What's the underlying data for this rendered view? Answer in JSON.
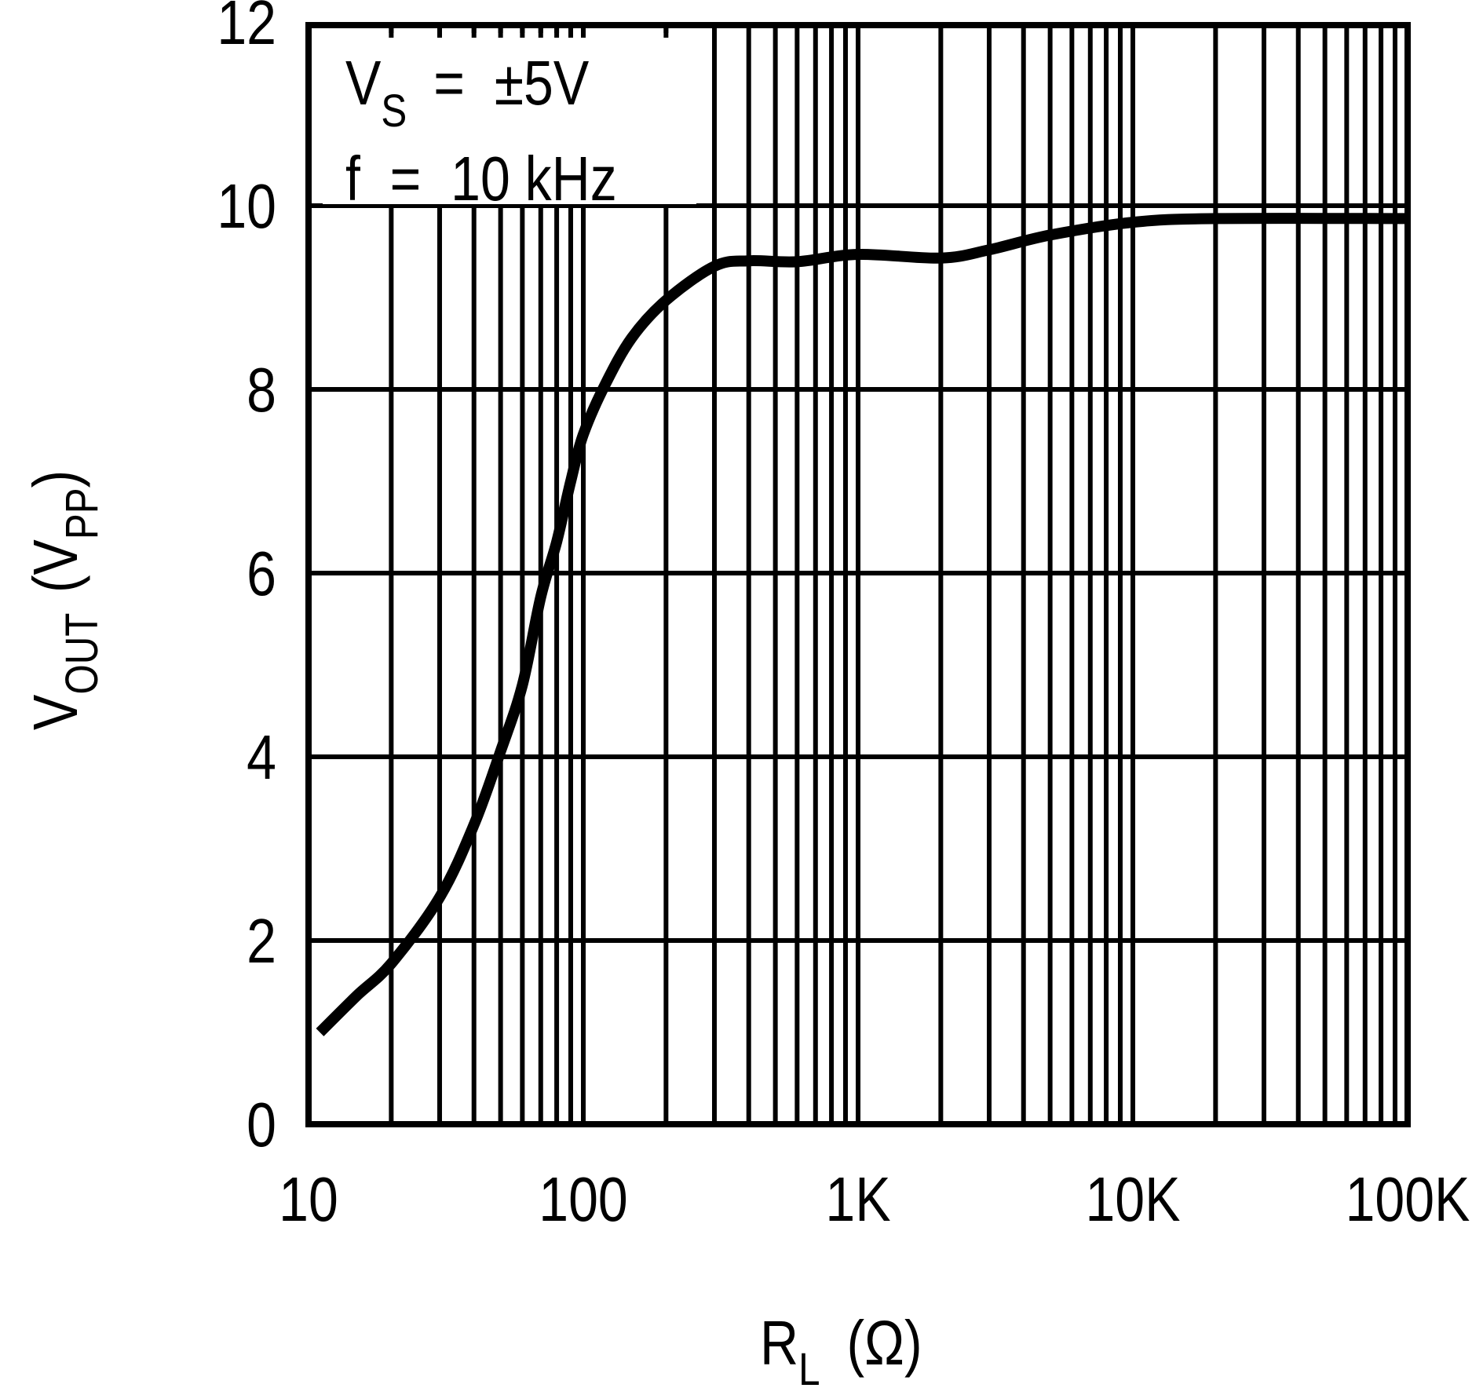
{
  "chart_data": {
    "type": "line",
    "title": "",
    "xlabel": "R_L (Ω)",
    "ylabel": "V_OUT (V_PP)",
    "x_scale": "log",
    "xlim": [
      10,
      100000
    ],
    "ylim": [
      0,
      12
    ],
    "x_ticks": [
      10,
      100,
      1000,
      10000,
      100000
    ],
    "x_tick_labels": [
      "10",
      "100",
      "1K",
      "10K",
      "100K"
    ],
    "y_ticks": [
      0,
      2,
      4,
      6,
      8,
      10,
      12
    ],
    "y_tick_labels": [
      "0",
      "2",
      "4",
      "6",
      "8",
      "10",
      "12"
    ],
    "grid": true,
    "legend": null,
    "annotations": [
      "V_S = ±5V",
      "f = 10 kHz"
    ],
    "series": [
      {
        "name": "V_OUT",
        "x": [
          11,
          15,
          20,
          30,
          40,
          50,
          60,
          70,
          80,
          90,
          100,
          120,
          150,
          200,
          300,
          400,
          600,
          1000,
          2000,
          3000,
          5000,
          10000,
          20000,
          100000
        ],
        "y": [
          1.0,
          1.4,
          1.75,
          2.47,
          3.26,
          4.06,
          4.78,
          5.74,
          6.34,
          7.0,
          7.51,
          8.05,
          8.56,
          8.97,
          9.34,
          9.4,
          9.39,
          9.47,
          9.43,
          9.52,
          9.68,
          9.82,
          9.86,
          9.86
        ]
      }
    ]
  },
  "labels": {
    "y_axis_main": "V",
    "y_axis_sub": "OUT",
    "y_axis_unit_open": "(V",
    "y_axis_unit_sub": "PP",
    "y_axis_unit_close": ")",
    "x_axis_main": "R",
    "x_axis_sub": "L",
    "x_axis_unit": "(Ω)",
    "annot_line1_main": "V",
    "annot_line1_sub": "S",
    "annot_line1_rest": "=  ±5V",
    "annot_line2": "f  =  10 kHz"
  },
  "colors": {
    "line": "#000000",
    "grid": "#000000",
    "background": "#ffffff"
  }
}
